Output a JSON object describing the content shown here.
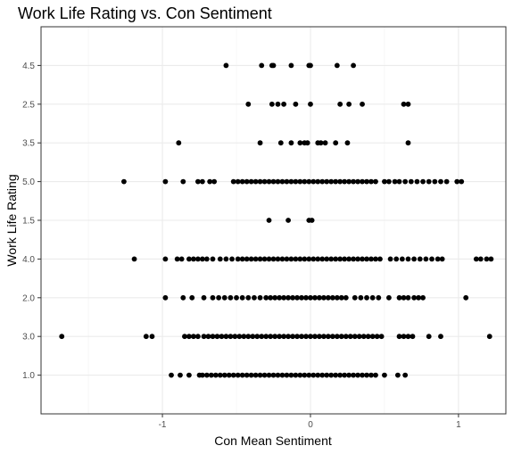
{
  "chart_data": {
    "type": "scatter",
    "title": "Work Life Rating vs. Con Sentiment",
    "xlabel": "Con Mean Sentiment",
    "ylabel": "Work Life Rating",
    "xlim": [
      -1.82,
      1.32
    ],
    "x_ticks": [
      -1,
      0,
      1
    ],
    "x_tick_labels": [
      "-1",
      "0",
      "1"
    ],
    "categories": [
      "1.0",
      "3.0",
      "2.0",
      "4.0",
      "1.5",
      "5.0",
      "3.5",
      "2.5",
      "4.5"
    ],
    "grid": true,
    "point_color": "#000000",
    "series": [
      {
        "category": "1.0",
        "x": [
          -0.94,
          -0.88,
          -0.82,
          -0.75,
          -0.73,
          -0.7,
          -0.67,
          -0.64,
          -0.61,
          -0.58,
          -0.55,
          -0.52,
          -0.49,
          -0.46,
          -0.43,
          -0.4,
          -0.37,
          -0.34,
          -0.31,
          -0.28,
          -0.25,
          -0.22,
          -0.19,
          -0.16,
          -0.13,
          -0.1,
          -0.07,
          -0.04,
          -0.01,
          0.02,
          0.05,
          0.08,
          0.11,
          0.14,
          0.17,
          0.2,
          0.23,
          0.26,
          0.29,
          0.32,
          0.35,
          0.38,
          0.41,
          0.44,
          0.5,
          0.59,
          0.64
        ]
      },
      {
        "category": "3.0",
        "x": [
          -1.68,
          -1.11,
          -1.07,
          -0.85,
          -0.82,
          -0.79,
          -0.76,
          -0.72,
          -0.69,
          -0.66,
          -0.63,
          -0.6,
          -0.57,
          -0.54,
          -0.51,
          -0.48,
          -0.45,
          -0.42,
          -0.39,
          -0.36,
          -0.33,
          -0.3,
          -0.27,
          -0.24,
          -0.21,
          -0.18,
          -0.15,
          -0.12,
          -0.09,
          -0.06,
          -0.03,
          0.0,
          0.03,
          0.06,
          0.09,
          0.12,
          0.15,
          0.18,
          0.21,
          0.24,
          0.27,
          0.3,
          0.33,
          0.36,
          0.39,
          0.42,
          0.45,
          0.48,
          0.6,
          0.63,
          0.66,
          0.69,
          0.8,
          0.88,
          1.21
        ]
      },
      {
        "category": "2.0",
        "x": [
          -0.98,
          -0.86,
          -0.8,
          -0.72,
          -0.66,
          -0.62,
          -0.58,
          -0.54,
          -0.5,
          -0.46,
          -0.42,
          -0.38,
          -0.34,
          -0.3,
          -0.27,
          -0.24,
          -0.21,
          -0.18,
          -0.15,
          -0.12,
          -0.09,
          -0.06,
          -0.03,
          0.0,
          0.03,
          0.06,
          0.09,
          0.12,
          0.15,
          0.18,
          0.21,
          0.24,
          0.3,
          0.34,
          0.38,
          0.42,
          0.46,
          0.53,
          0.6,
          0.63,
          0.66,
          0.7,
          0.73,
          0.76,
          1.05
        ]
      },
      {
        "category": "4.0",
        "x": [
          -1.19,
          -0.98,
          -0.9,
          -0.87,
          -0.82,
          -0.79,
          -0.76,
          -0.73,
          -0.7,
          -0.66,
          -0.61,
          -0.57,
          -0.53,
          -0.49,
          -0.46,
          -0.43,
          -0.4,
          -0.37,
          -0.34,
          -0.31,
          -0.28,
          -0.25,
          -0.22,
          -0.19,
          -0.16,
          -0.13,
          -0.1,
          -0.07,
          -0.04,
          -0.01,
          0.02,
          0.05,
          0.08,
          0.11,
          0.14,
          0.17,
          0.2,
          0.23,
          0.26,
          0.29,
          0.32,
          0.35,
          0.38,
          0.41,
          0.44,
          0.47,
          0.54,
          0.58,
          0.62,
          0.66,
          0.7,
          0.74,
          0.78,
          0.82,
          0.86,
          0.89,
          1.12,
          1.15,
          1.19,
          1.22
        ]
      },
      {
        "category": "1.5",
        "x": [
          -0.28,
          -0.15,
          -0.01,
          0.01
        ]
      },
      {
        "category": "5.0",
        "x": [
          -1.26,
          -0.98,
          -0.86,
          -0.76,
          -0.73,
          -0.68,
          -0.65,
          -0.52,
          -0.49,
          -0.46,
          -0.43,
          -0.4,
          -0.37,
          -0.34,
          -0.31,
          -0.28,
          -0.25,
          -0.22,
          -0.19,
          -0.16,
          -0.13,
          -0.1,
          -0.07,
          -0.04,
          -0.01,
          0.02,
          0.05,
          0.08,
          0.11,
          0.14,
          0.17,
          0.2,
          0.23,
          0.26,
          0.29,
          0.32,
          0.35,
          0.38,
          0.41,
          0.44,
          0.5,
          0.53,
          0.57,
          0.6,
          0.64,
          0.68,
          0.72,
          0.76,
          0.8,
          0.84,
          0.88,
          0.92,
          0.99,
          1.02
        ]
      },
      {
        "category": "3.5",
        "x": [
          -0.89,
          -0.34,
          -0.2,
          -0.13,
          -0.07,
          -0.04,
          -0.02,
          0.05,
          0.07,
          0.1,
          0.17,
          0.25,
          0.66
        ]
      },
      {
        "category": "2.5",
        "x": [
          -0.42,
          -0.26,
          -0.22,
          -0.18,
          -0.1,
          0.0,
          0.2,
          0.26,
          0.35,
          0.63,
          0.66
        ]
      },
      {
        "category": "4.5",
        "x": [
          -0.57,
          -0.33,
          -0.26,
          -0.25,
          -0.13,
          -0.01,
          0.0,
          0.18,
          0.29
        ]
      }
    ]
  }
}
